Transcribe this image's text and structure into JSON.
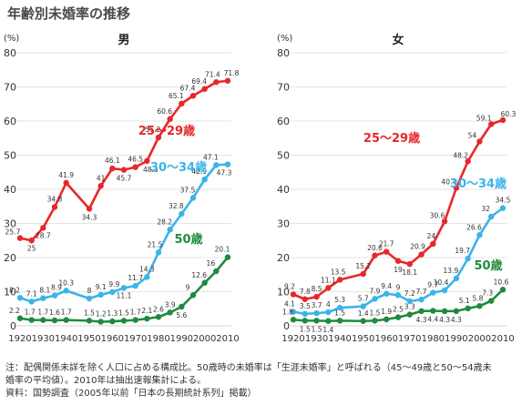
{
  "page_title": "年齢別未婚率の推移",
  "notes": {
    "line1": "注：配偶関係未詳を除く人口に占める構成比。50歳時の未婚率は「生涯未婚率」と呼ばれる（45～49歳と50～54歳未",
    "line2": "婚率の平均値）。2010年は抽出速報集計による。",
    "line3": "資料：国勢調査（2005年以前「日本の長期統計系列」掲載）"
  },
  "colors": {
    "s25_29": "#e8272a",
    "s30_34": "#3ab4e8",
    "s50": "#1f8a3e",
    "grid": "#dddddd",
    "axis_text": "#333333"
  },
  "chart_data": [
    {
      "type": "line",
      "title": "男",
      "ylabel": "(%)",
      "ylim": [
        0,
        80
      ],
      "yticks": [
        0,
        10,
        20,
        30,
        40,
        50,
        60,
        70,
        80
      ],
      "x": [
        1920,
        1925,
        1930,
        1935,
        1940,
        1950,
        1955,
        1960,
        1965,
        1970,
        1975,
        1980,
        1985,
        1990,
        1995,
        2000,
        2005,
        2010
      ],
      "xticks": [
        1920,
        1930,
        1940,
        1950,
        1960,
        1970,
        1980,
        1990,
        2000,
        2010
      ],
      "grid": true,
      "series": [
        {
          "name": "25～29歳",
          "color": "#e8272a",
          "values": [
            25.7,
            25.0,
            28.7,
            34.8,
            41.9,
            34.3,
            41.0,
            46.1,
            45.7,
            46.5,
            48.3,
            55.2,
            60.6,
            65.1,
            67.4,
            69.4,
            71.4,
            71.8
          ]
        },
        {
          "name": "30～34歳",
          "color": "#3ab4e8",
          "values": [
            8.2,
            7.1,
            8.1,
            8.9,
            10.3,
            8.0,
            9.1,
            9.9,
            11.1,
            11.7,
            14.3,
            21.5,
            28.2,
            32.8,
            37.5,
            42.9,
            47.1,
            47.3
          ]
        },
        {
          "name": "50歳",
          "color": "#1f8a3e",
          "values": [
            2.2,
            1.7,
            1.7,
            1.6,
            1.7,
            1.5,
            1.2,
            1.3,
            1.5,
            1.7,
            2.1,
            2.6,
            3.9,
            5.6,
            9.0,
            12.6,
            16.0,
            20.1
          ]
        }
      ]
    },
    {
      "type": "line",
      "title": "女",
      "ylabel": "(%)",
      "ylim": [
        0,
        80
      ],
      "yticks": [
        0,
        10,
        20,
        30,
        40,
        50,
        60,
        70,
        80
      ],
      "x": [
        1920,
        1925,
        1930,
        1935,
        1940,
        1950,
        1955,
        1960,
        1965,
        1970,
        1975,
        1980,
        1985,
        1990,
        1995,
        2000,
        2005,
        2010
      ],
      "xticks": [
        1920,
        1930,
        1940,
        1950,
        1960,
        1970,
        1980,
        1990,
        2000,
        2010
      ],
      "grid": true,
      "series": [
        {
          "name": "25～29歳",
          "color": "#e8272a",
          "values": [
            9.2,
            7.8,
            8.5,
            11.1,
            13.5,
            15.2,
            20.6,
            21.7,
            19.0,
            18.1,
            20.9,
            24.0,
            30.6,
            40.4,
            48.2,
            54.0,
            59.1,
            60.3
          ]
        },
        {
          "name": "30～34歳",
          "color": "#3ab4e8",
          "values": [
            4.1,
            3.5,
            3.7,
            4.0,
            5.3,
            5.7,
            7.9,
            9.4,
            9.0,
            7.2,
            7.7,
            9.7,
            10.4,
            13.9,
            19.7,
            26.6,
            32.0,
            34.5
          ]
        },
        {
          "name": "50歳",
          "color": "#1f8a3e",
          "values": [
            1.8,
            1.5,
            1.5,
            1.4,
            1.5,
            1.4,
            1.5,
            1.9,
            2.5,
            3.3,
            4.3,
            4.4,
            4.3,
            4.3,
            5.1,
            5.8,
            7.3,
            10.6
          ]
        }
      ]
    }
  ]
}
